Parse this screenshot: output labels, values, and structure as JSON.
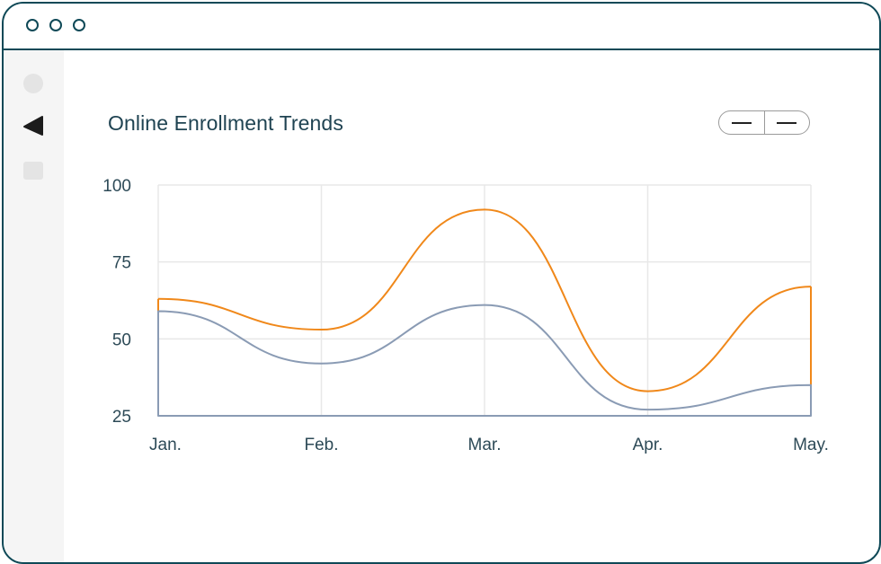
{
  "window": {
    "title_dots": [
      "dot-1",
      "dot-2",
      "dot-3"
    ]
  },
  "sidebar": {
    "icons": [
      "circle-icon",
      "play-left-icon",
      "square-icon"
    ]
  },
  "colors": {
    "series_a": "#f0881a",
    "series_b": "#8a9bb4",
    "frame": "#0f4957",
    "grid": "#e8e8e8"
  },
  "chart_data": {
    "type": "line",
    "title": "Online Enrollment Trends",
    "categories": [
      "Jan.",
      "Feb.",
      "Mar.",
      "Apr.",
      "May."
    ],
    "y_ticks": [
      "100",
      "75",
      "50",
      "25"
    ],
    "ylim": [
      25,
      100
    ],
    "grid": true,
    "smooth": true,
    "series": [
      {
        "values": [
          63,
          53,
          92,
          33,
          67
        ],
        "color": "#f0881a"
      },
      {
        "values": [
          59,
          42,
          61,
          27,
          35
        ],
        "color": "#8a9bb4"
      }
    ]
  }
}
